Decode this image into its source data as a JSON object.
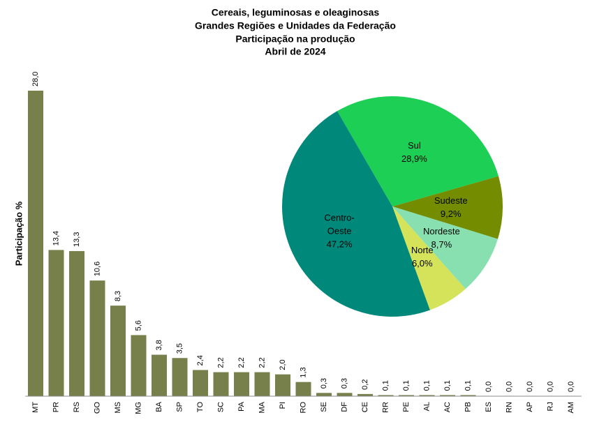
{
  "chart_data": [
    {
      "type": "bar",
      "title": [
        "Cereais, leguminosas e oleaginosas",
        "Grandes Regiões e Unidades da Federação",
        "Participação na produção",
        "Abril  de 2024"
      ],
      "y_label": "Participação %",
      "categories": [
        "MT",
        "PR",
        "RS",
        "GO",
        "MS",
        "MG",
        "BA",
        "SP",
        "TO",
        "SC",
        "PA",
        "MA",
        "PI",
        "RO",
        "SE",
        "DF",
        "CE",
        "RR",
        "PE",
        "AL",
        "AC",
        "PB",
        "ES",
        "RN",
        "AP",
        "RJ",
        "AM"
      ],
      "values": [
        28.0,
        13.4,
        13.3,
        10.6,
        8.3,
        5.6,
        3.8,
        3.5,
        2.4,
        2.2,
        2.2,
        2.2,
        2.0,
        1.3,
        0.3,
        0.3,
        0.2,
        0.1,
        0.1,
        0.1,
        0.1,
        0.1,
        0.0,
        0.0,
        0.0,
        0.0,
        0.0
      ],
      "value_labels": [
        "28,0",
        "13,4",
        "13,3",
        "10,6",
        "8,3",
        "5,6",
        "3,8",
        "3,5",
        "2,4",
        "2,2",
        "2,2",
        "2,2",
        "2,0",
        "1,3",
        "0,3",
        "0,3",
        "0,2",
        "0,1",
        "0,1",
        "0,1",
        "0,1",
        "0,1",
        "0,0",
        "0,0",
        "0,0",
        "0,0",
        "0,0"
      ],
      "color": "#77804a",
      "ylim": [
        0,
        28
      ]
    },
    {
      "type": "pie",
      "categories": [
        "Sul",
        "Sudeste",
        "Nordeste",
        "Norte",
        "Centro-Oeste"
      ],
      "values": [
        28.9,
        9.2,
        8.7,
        6.0,
        47.2
      ],
      "value_labels": [
        "28,9%",
        "9,2%",
        "8,7%",
        "6,0%",
        "47,2%"
      ],
      "colors": [
        "#1ecf55",
        "#748c00",
        "#88e0b0",
        "#d4e35a",
        "#00897b"
      ]
    }
  ]
}
